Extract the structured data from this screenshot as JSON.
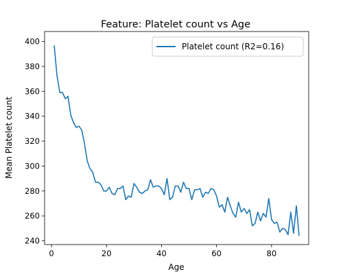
{
  "chart_data": {
    "type": "line",
    "title": "Feature: Platelet count vs Age",
    "xlabel": "Age",
    "ylabel": "Mean Platelet count",
    "xlim": [
      -2.5,
      93.5
    ],
    "ylim": [
      237,
      408
    ],
    "xticks": [
      0,
      20,
      40,
      60,
      80
    ],
    "yticks": [
      240,
      260,
      280,
      300,
      320,
      340,
      360,
      380,
      400
    ],
    "grid": false,
    "legend_position": "top-right",
    "series": [
      {
        "name": "Platelet count (R2=0.16)",
        "color": "#1f77b4",
        "x": [
          1,
          2,
          3,
          4,
          5,
          6,
          7,
          8,
          9,
          10,
          11,
          12,
          13,
          14,
          15,
          16,
          17,
          18,
          19,
          20,
          21,
          22,
          23,
          24,
          25,
          26,
          27,
          28,
          29,
          30,
          31,
          32,
          33,
          34,
          35,
          36,
          37,
          38,
          39,
          40,
          41,
          42,
          43,
          44,
          45,
          46,
          47,
          48,
          49,
          50,
          51,
          52,
          53,
          54,
          55,
          56,
          57,
          58,
          59,
          60,
          61,
          62,
          63,
          64,
          65,
          66,
          67,
          68,
          69,
          70,
          71,
          72,
          73,
          74,
          75,
          76,
          77,
          78,
          79,
          80,
          81,
          82,
          83,
          84,
          85,
          86,
          87,
          88,
          89,
          90
        ],
        "values": [
          397,
          373,
          359,
          359,
          354,
          356,
          341,
          335,
          331,
          332,
          329,
          318,
          304,
          298,
          295,
          287,
          287,
          285,
          280,
          280,
          283,
          278,
          277,
          282,
          282,
          284,
          273,
          276,
          275,
          286,
          283,
          279,
          278,
          280,
          281,
          289,
          283,
          284,
          284,
          282,
          277,
          290,
          273,
          275,
          284,
          284,
          279,
          287,
          282,
          282,
          273,
          281,
          281,
          282,
          275,
          279,
          278,
          282,
          281,
          276,
          267,
          269,
          263,
          275,
          268,
          262,
          259,
          271,
          263,
          266,
          262,
          265,
          252,
          254,
          263,
          256,
          262,
          259,
          274,
          257,
          254,
          255,
          247,
          250,
          249,
          245,
          263,
          246,
          268,
          244
        ]
      }
    ]
  }
}
